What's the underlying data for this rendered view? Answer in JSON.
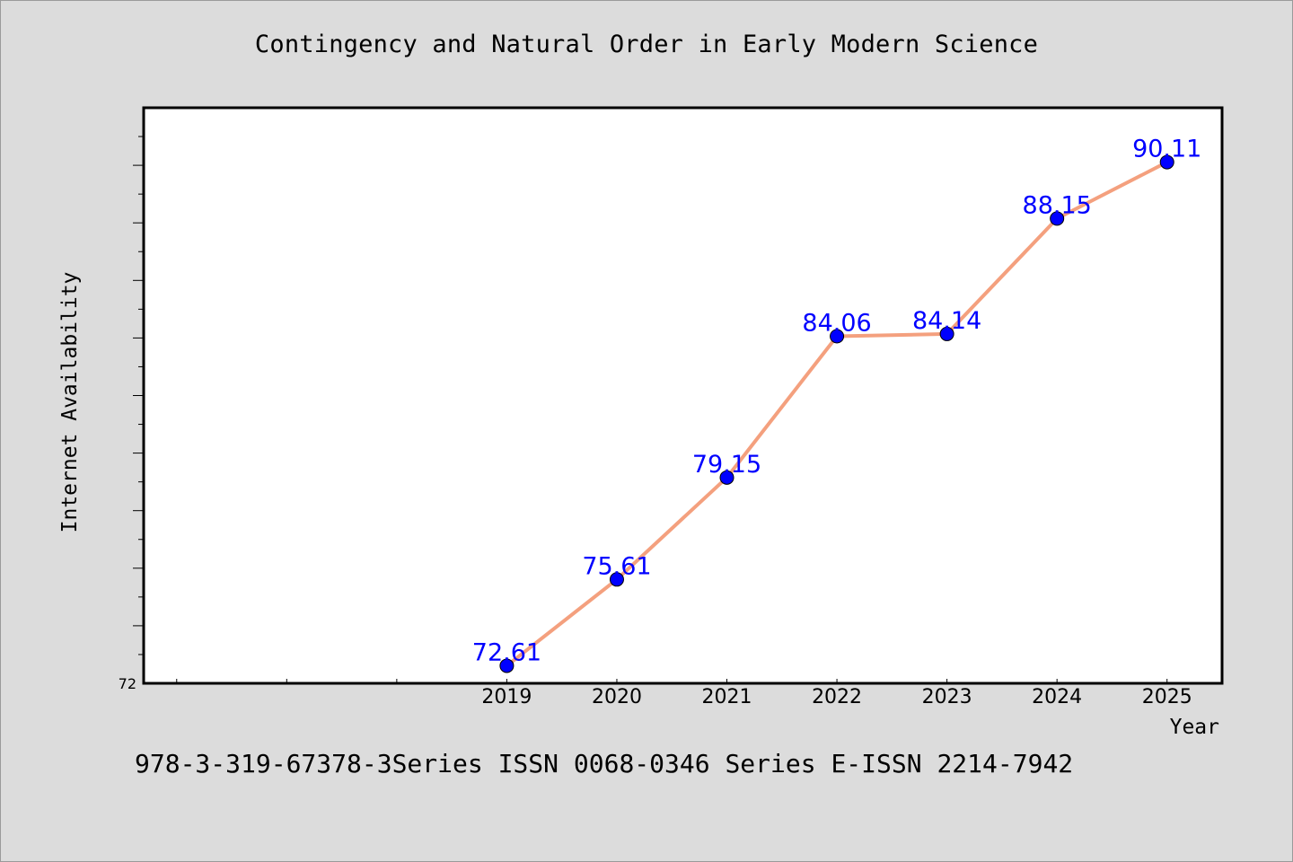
{
  "chart_data": {
    "type": "line",
    "title": "Contingency and Natural Order in Early Modern Science",
    "xlabel": "Year",
    "ylabel": "Internet Availability",
    "x": [
      "2019",
      "2020",
      "2021",
      "2022",
      "2023",
      "2024",
      "2025"
    ],
    "series": [
      {
        "values": [
          72.61,
          75.61,
          79.15,
          84.06,
          84.14,
          88.15,
          90.11
        ],
        "labels": [
          "72.61",
          "75.61",
          "79.15",
          "84.06",
          "84.14",
          "88.15",
          "90.11"
        ]
      }
    ],
    "y_tick_labels": [
      "72"
    ],
    "ylim": [
      72,
      92
    ],
    "xlim": [
      2015.7,
      2025.5
    ],
    "grid": false,
    "line_color": "#f4a07e",
    "marker_color": "#0000ff",
    "label_color": "#0000ff"
  },
  "footer": {
    "text": "978-3-319-67378-3Series ISSN 0068-0346 Series E-ISSN 2214-7942"
  }
}
